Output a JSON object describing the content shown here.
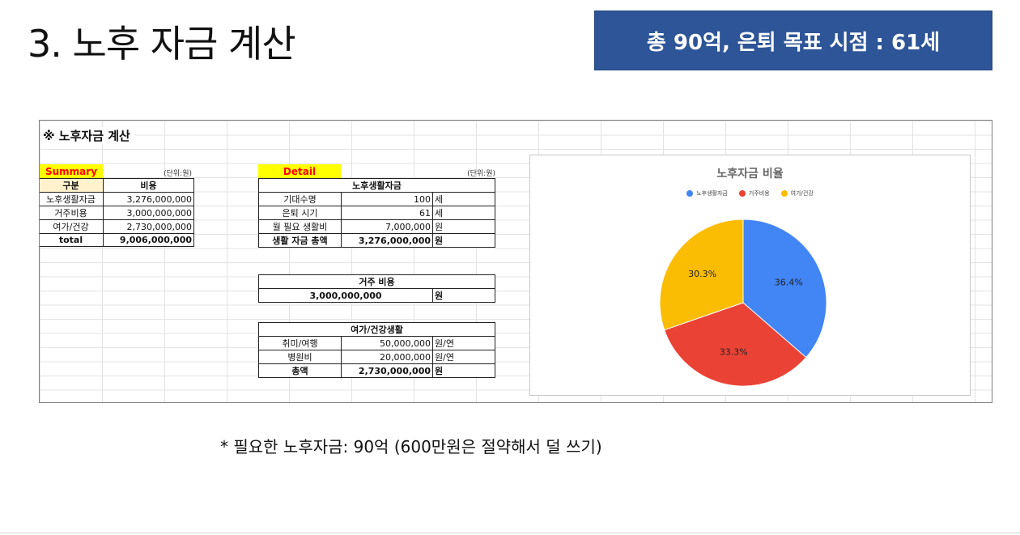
{
  "slide": {
    "title": "3. 노후 자금 계산",
    "badge": "총 90억, 은퇴 목표 시점  : 61세",
    "footnote": "* 필요한 노후자금: 90억 (600만원은 절약해서 덜 쓰기)"
  },
  "sheet": {
    "heading": "※ 노후자금 계산",
    "summary": {
      "label": "Summary",
      "unit": "(단위:원)",
      "headers": [
        "구분",
        "비용"
      ],
      "rows": [
        {
          "name": "노후생활자금",
          "value": "3,276,000,000"
        },
        {
          "name": "거주비용",
          "value": "3,000,000,000"
        },
        {
          "name": "여가/건강",
          "value": "2,730,000,000"
        },
        {
          "name": "total",
          "value": "9,006,000,000"
        }
      ]
    },
    "detail": {
      "label": "Detail",
      "unit": "(단위:원)",
      "living": {
        "title": "노후생활자금",
        "rows": [
          {
            "name": "기대수명",
            "value": "100",
            "unit": "세"
          },
          {
            "name": "은퇴 시기",
            "value": "61",
            "unit": "세"
          },
          {
            "name": "월 필요 생활비",
            "value": "7,000,000",
            "unit": "원"
          },
          {
            "name": "생활 자금 총액",
            "value": "3,276,000,000",
            "unit": "원"
          }
        ]
      },
      "housing": {
        "title": "거주 비용",
        "value": "3,000,000,000",
        "unit": "원"
      },
      "leisure": {
        "title": "여가/건강생활",
        "rows": [
          {
            "name": "취미/여행",
            "value": "50,000,000",
            "unit": "원/연"
          },
          {
            "name": "병원비",
            "value": "20,000,000",
            "unit": "원/연"
          },
          {
            "name": "총액",
            "value": "2,730,000,000",
            "unit": "원"
          }
        ]
      }
    }
  },
  "chart_data": {
    "type": "pie",
    "title": "노후자금 비율",
    "legend_position": "top",
    "categories": [
      "노후생활자금",
      "거주비용",
      "여가/건강"
    ],
    "values": [
      36.4,
      33.3,
      30.3
    ],
    "labels": [
      "36.4%",
      "33.3%",
      "30.3%"
    ],
    "colors": [
      "#4285f4",
      "#ea4335",
      "#fbbc04"
    ]
  }
}
